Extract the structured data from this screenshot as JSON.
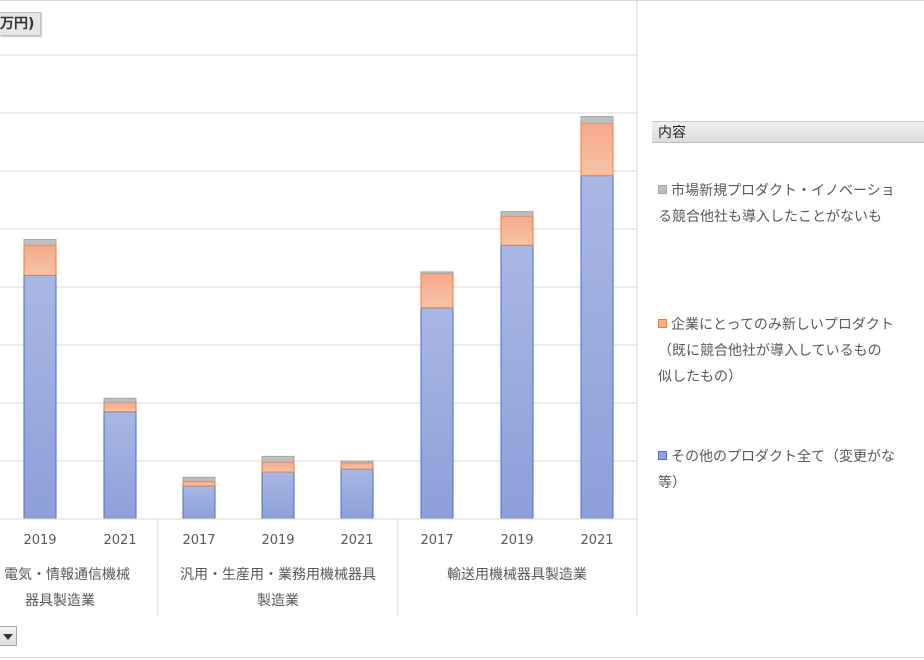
{
  "unit_label": "万円)",
  "legend_title": "内容",
  "colors": {
    "other": "#8fa2dc",
    "other_edge": "#4472c4",
    "new_to_firm": "#f4b183",
    "new_to_firm_edge": "#ed7d31",
    "new_to_market": "#bfbfbf",
    "new_to_market_edge": "#a6a6a6"
  },
  "legend_items": [
    {
      "key": "new_to_market",
      "text": "市場新規プロダクト・イノベーショ\nる競合他社も導入したことがないも"
    },
    {
      "key": "new_to_firm",
      "text": "企業にとってのみ新しいプロダクト\n（既に競合他社が導入しているもの\n似したもの）"
    },
    {
      "key": "other",
      "text": "その他のプロダクト全て（変更がな\n等）"
    }
  ],
  "chart_data": {
    "type": "bar",
    "stacked": true,
    "grid": true,
    "ylim": [
      0,
      8
    ],
    "groups": [
      {
        "label_lines": [
          "・電気・情報通信機械",
          "器具製造業"
        ]
      },
      {
        "label_lines": [
          "汎用・生産用・業務用機械器具",
          "製造業"
        ]
      },
      {
        "label_lines": [
          "輸送用機械器具製造業"
        ]
      }
    ],
    "categories": [
      "2019",
      "2021",
      "2017",
      "2019",
      "2021",
      "2017",
      "2019",
      "2021"
    ],
    "category_group": [
      0,
      0,
      1,
      1,
      1,
      2,
      2,
      2
    ],
    "series": [
      {
        "key": "other",
        "values": [
          4.2,
          1.85,
          0.57,
          0.81,
          0.86,
          3.64,
          4.72,
          5.92
        ]
      },
      {
        "key": "new_to_firm",
        "values": [
          0.52,
          0.16,
          0.08,
          0.17,
          0.11,
          0.59,
          0.5,
          0.9
        ]
      },
      {
        "key": "new_to_market",
        "values": [
          0.1,
          0.07,
          0.07,
          0.1,
          0.03,
          0.03,
          0.08,
          0.12
        ]
      }
    ]
  }
}
